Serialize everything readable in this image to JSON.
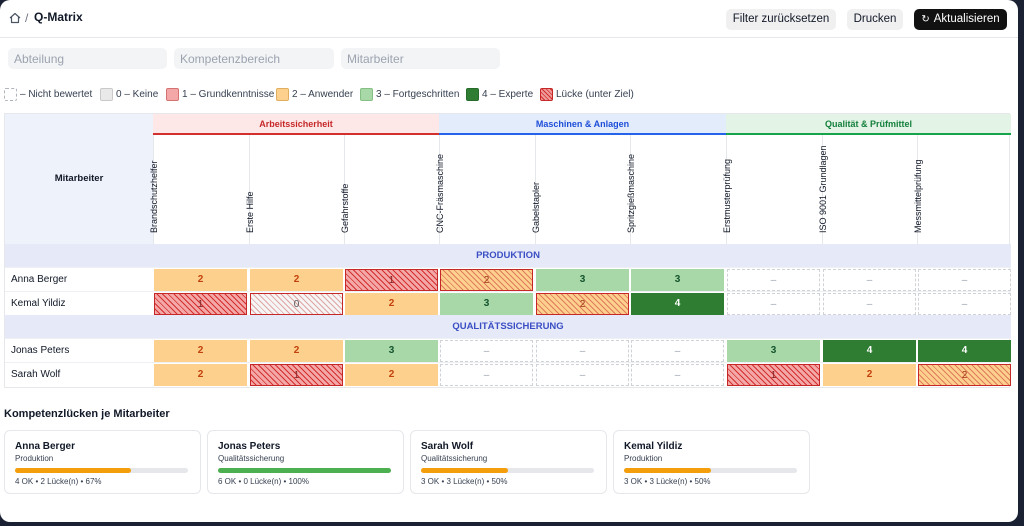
{
  "header": {
    "breadcrumb_sep": "/",
    "title": "Q-Matrix"
  },
  "toolbar": {
    "reset_label": "Filter zurücksetzen",
    "print_label": "Drucken",
    "refresh_label": "Aktualisieren"
  },
  "filters": {
    "department_placeholder": "Abteilung",
    "competence_placeholder": "Kompetenzbereich",
    "employee_placeholder": "Mitarbeiter"
  },
  "legend": [
    {
      "swatch": "none",
      "label": "– Nicht bewertet"
    },
    {
      "swatch": "0",
      "label": "0 – Keine"
    },
    {
      "swatch": "1",
      "label": "1 – Grundkenntnisse"
    },
    {
      "swatch": "2",
      "label": "2 – Anwender"
    },
    {
      "swatch": "3",
      "label": "3 – Fortgeschritten"
    },
    {
      "swatch": "4",
      "label": "4 – Experte"
    },
    {
      "swatch": "gap",
      "label": "Lücke (unter Ziel)"
    }
  ],
  "matrix": {
    "employee_header": "Mitarbeiter",
    "groups": [
      {
        "name": "Arbeitssicherheit",
        "color": "#d32f2f",
        "skills": [
          "Brandschutzhelfer",
          "Erste Hilfe",
          "Gefahrstoffe"
        ]
      },
      {
        "name": "Maschinen & Anlagen",
        "color": "#2563eb",
        "skills": [
          "CNC-Fräsmaschine",
          "Gabelstapler",
          "Spritzgießmaschine"
        ]
      },
      {
        "name": "Qualität & Prüfmittel",
        "color": "#16a34a",
        "skills": [
          "Erstmusterprüfung",
          "ISO 9001 Grundlagen",
          "Messmittelprüfung"
        ]
      }
    ],
    "empty_mark": "–",
    "departments": [
      {
        "name": "PRODUKTION",
        "employees": [
          {
            "name": "Anna Berger",
            "cells": [
              {
                "v": "2",
                "gap": false
              },
              {
                "v": "2",
                "gap": false
              },
              {
                "v": "1",
                "gap": true
              },
              {
                "v": "2",
                "gap": true
              },
              {
                "v": "3",
                "gap": false
              },
              {
                "v": "3",
                "gap": false
              },
              {
                "v": null,
                "gap": false
              },
              {
                "v": null,
                "gap": false
              },
              {
                "v": null,
                "gap": false
              }
            ]
          },
          {
            "name": "Kemal Yildiz",
            "cells": [
              {
                "v": "1",
                "gap": true
              },
              {
                "v": "0",
                "gap": true
              },
              {
                "v": "2",
                "gap": false
              },
              {
                "v": "3",
                "gap": false
              },
              {
                "v": "2",
                "gap": true
              },
              {
                "v": "4",
                "gap": false
              },
              {
                "v": null,
                "gap": false
              },
              {
                "v": null,
                "gap": false
              },
              {
                "v": null,
                "gap": false
              }
            ]
          }
        ]
      },
      {
        "name": "QUALITÄTSSICHERUNG",
        "employees": [
          {
            "name": "Jonas Peters",
            "cells": [
              {
                "v": "2",
                "gap": false
              },
              {
                "v": "2",
                "gap": false
              },
              {
                "v": "3",
                "gap": false
              },
              {
                "v": null,
                "gap": false
              },
              {
                "v": null,
                "gap": false
              },
              {
                "v": null,
                "gap": false
              },
              {
                "v": "3",
                "gap": false
              },
              {
                "v": "4",
                "gap": false
              },
              {
                "v": "4",
                "gap": false
              }
            ]
          },
          {
            "name": "Sarah Wolf",
            "cells": [
              {
                "v": "2",
                "gap": false
              },
              {
                "v": "1",
                "gap": true
              },
              {
                "v": "2",
                "gap": false
              },
              {
                "v": null,
                "gap": false
              },
              {
                "v": null,
                "gap": false
              },
              {
                "v": null,
                "gap": false
              },
              {
                "v": "1",
                "gap": true
              },
              {
                "v": "2",
                "gap": false
              },
              {
                "v": "2",
                "gap": true
              }
            ]
          }
        ]
      }
    ]
  },
  "gaps": {
    "title": "Kompetenzlücken je Mitarbeiter",
    "cards": [
      {
        "name": "Anna Berger",
        "department": "Produktion",
        "progress": 0.67,
        "bar_color": "#f59e0b",
        "stats": "4 OK • 2 Lücke(n) • 67%"
      },
      {
        "name": "Jonas Peters",
        "department": "Qualitätssicherung",
        "progress": 1.0,
        "bar_color": "#4caf50",
        "stats": "6 OK • 0 Lücke(n) • 100%"
      },
      {
        "name": "Sarah Wolf",
        "department": "Qualitätssicherung",
        "progress": 0.5,
        "bar_color": "#f59e0b",
        "stats": "3 OK • 3 Lücke(n) • 50%"
      },
      {
        "name": "Kemal Yildiz",
        "department": "Produktion",
        "progress": 0.5,
        "bar_color": "#f59e0b",
        "stats": "3 OK • 3 Lücke(n) • 50%"
      }
    ]
  }
}
